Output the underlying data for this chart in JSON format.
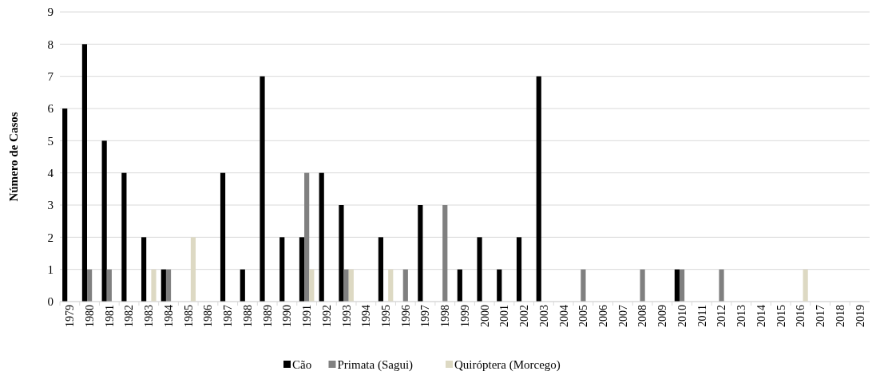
{
  "chart_data": {
    "type": "bar",
    "ylabel": "Número de Casos",
    "categories": [
      "1979",
      "1980",
      "1981",
      "1982",
      "1983",
      "1984",
      "1985",
      "1986",
      "1987",
      "1988",
      "1989",
      "1990",
      "1991",
      "1992",
      "1993",
      "1994",
      "1995",
      "1996",
      "1997",
      "1998",
      "1999",
      "2000",
      "2001",
      "2002",
      "2003",
      "2004",
      "2005",
      "2006",
      "2007",
      "2008",
      "2009",
      "2010",
      "2011",
      "2012",
      "2013",
      "2014",
      "2015",
      "2016",
      "2017",
      "2018",
      "2019"
    ],
    "series": [
      {
        "name": "Cão",
        "color": "#000000",
        "values": [
          6,
          8,
          5,
          4,
          2,
          1,
          0,
          0,
          4,
          1,
          7,
          2,
          2,
          4,
          3,
          0,
          2,
          0,
          3,
          0,
          1,
          2,
          1,
          2,
          7,
          0,
          0,
          0,
          0,
          0,
          0,
          1,
          0,
          0,
          0,
          0,
          0,
          0,
          0,
          0,
          0
        ]
      },
      {
        "name": "Primata (Sagui)",
        "color": "#808080",
        "values": [
          0,
          1,
          1,
          0,
          0,
          1,
          0,
          0,
          0,
          0,
          0,
          0,
          4,
          0,
          1,
          0,
          0,
          1,
          0,
          3,
          0,
          0,
          0,
          0,
          0,
          0,
          1,
          0,
          0,
          1,
          0,
          1,
          0,
          1,
          0,
          0,
          0,
          0,
          0,
          0,
          0
        ]
      },
      {
        "name": "Quiróptera (Morcego)",
        "color": "#ddd9c3",
        "values": [
          0,
          0,
          0,
          0,
          1,
          0,
          2,
          0,
          0,
          0,
          0,
          0,
          1,
          0,
          1,
          0,
          1,
          0,
          0,
          0,
          0,
          0,
          0,
          0,
          0,
          0,
          0,
          0,
          0,
          0,
          0,
          0,
          0,
          0,
          0,
          0,
          0,
          1,
          0,
          0,
          0
        ]
      }
    ],
    "ylim": [
      0,
      9
    ],
    "yticks": [
      0,
      1,
      2,
      3,
      4,
      5,
      6,
      7,
      8,
      9
    ],
    "grid": "y",
    "legend": "bottom"
  }
}
